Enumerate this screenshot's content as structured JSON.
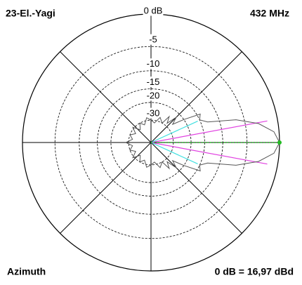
{
  "chart_data": {
    "type": "polar-pattern",
    "title": "23-El.-Yagi",
    "subtitle": "432 MHz",
    "x_label": "Azimuth",
    "annotation": "0 dB = 16,97 dBd",
    "radial_scale": "arrl-log",
    "rlim": [
      -40,
      0
    ],
    "rticks": [
      {
        "value": 0,
        "label": "0 dB"
      },
      -5,
      -10,
      -15,
      -20,
      -30
    ],
    "spokes": [
      0,
      45,
      90,
      135,
      180,
      225,
      270,
      315
    ],
    "series": [
      {
        "color": "#555555",
        "x": [
          -180,
          -170,
          -160,
          -150,
          -140,
          -130,
          -120,
          -110,
          -100,
          -90,
          -80,
          -70,
          -60,
          -55,
          -50,
          -45,
          -40,
          -35,
          -30,
          -25,
          -20,
          -15,
          -10,
          -5,
          0,
          5,
          10,
          15,
          20,
          25,
          30,
          35,
          40,
          45,
          50,
          55,
          60,
          70,
          80,
          90,
          100,
          110,
          120,
          130,
          140,
          150,
          160,
          170,
          180
        ],
        "values": [
          -28,
          -33,
          -30,
          -34,
          -29,
          -35,
          -30,
          -33,
          -28,
          -30,
          -32,
          -27,
          -30,
          -24,
          -28,
          -22,
          -26,
          -20,
          -14,
          -15,
          -13,
          -6.5,
          -2.8,
          -0.7,
          0,
          -0.7,
          -2.8,
          -6.5,
          -13,
          -15,
          -14,
          -20,
          -26,
          -22,
          -28,
          -24,
          -30,
          -27,
          -32,
          -30,
          -28,
          -33,
          -30,
          -35,
          -29,
          -34,
          -30,
          -33,
          -28
        ]
      }
    ],
    "beam_lines": [
      {
        "color": "#e040e0",
        "angles": [
          10.5,
          -10.5
        ]
      },
      {
        "color": "#40e0e0",
        "angles": [
          24.6,
          -24.6
        ]
      }
    ],
    "peak": {
      "color": "#22bb22",
      "angle": 0,
      "value": 0
    }
  }
}
